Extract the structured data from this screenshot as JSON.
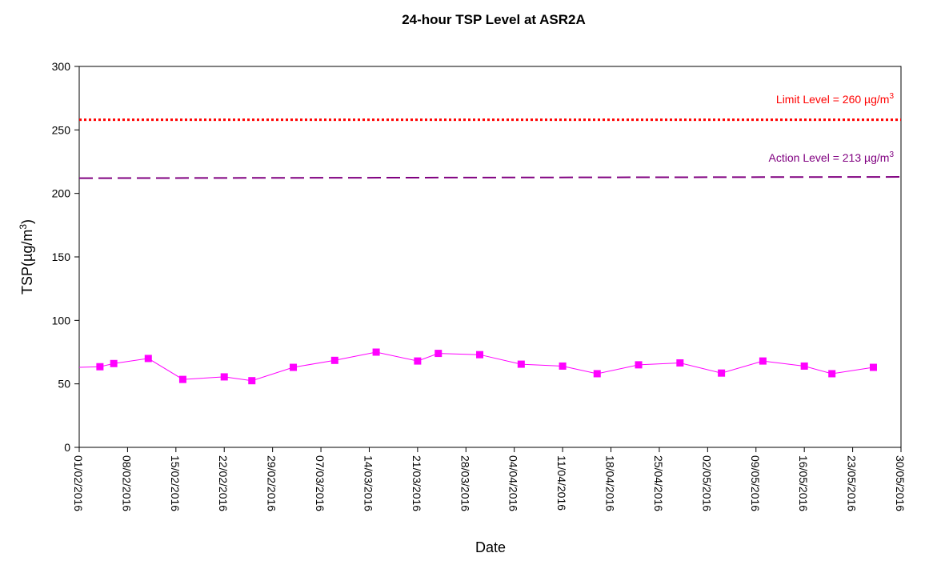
{
  "chart_data": {
    "type": "line",
    "title": "24-hour TSP Level at ASR2A",
    "xlabel": "Date",
    "ylabel": "TSP(µg/m",
    "ylabel_sup": "3",
    "ylim": [
      0,
      300
    ],
    "y_ticks": [
      0,
      50,
      100,
      150,
      200,
      250,
      300
    ],
    "x_range": [
      "2016-02-01",
      "2016-05-30"
    ],
    "x_tick_labels": [
      "01/02/2016",
      "08/02/2016",
      "15/02/2016",
      "22/02/2016",
      "29/02/2016",
      "07/03/2016",
      "14/03/2016",
      "21/03/2016",
      "28/03/2016",
      "04/04/2016",
      "11/04/2016",
      "18/04/2016",
      "25/04/2016",
      "02/05/2016",
      "09/05/2016",
      "16/05/2016",
      "23/05/2016",
      "30/05/2016"
    ],
    "x_tick_dates": [
      "2016-02-01",
      "2016-02-08",
      "2016-02-15",
      "2016-02-22",
      "2016-02-29",
      "2016-03-07",
      "2016-03-14",
      "2016-03-21",
      "2016-03-28",
      "2016-04-04",
      "2016-04-11",
      "2016-04-18",
      "2016-04-25",
      "2016-05-02",
      "2016-05-09",
      "2016-05-16",
      "2016-05-23",
      "2016-05-30"
    ],
    "grid": false,
    "series": [
      {
        "color": "#ff00ff",
        "marker": "square",
        "points": [
          {
            "x": "2016-02-01",
            "y": 63,
            "marker": false
          },
          {
            "x": "2016-02-04",
            "y": 63.5
          },
          {
            "x": "2016-02-06",
            "y": 66
          },
          {
            "x": "2016-02-11",
            "y": 70
          },
          {
            "x": "2016-02-16",
            "y": 53.5
          },
          {
            "x": "2016-02-22",
            "y": 55.5
          },
          {
            "x": "2016-02-26",
            "y": 52.5
          },
          {
            "x": "2016-03-03",
            "y": 63
          },
          {
            "x": "2016-03-09",
            "y": 68.5
          },
          {
            "x": "2016-03-15",
            "y": 75
          },
          {
            "x": "2016-03-21",
            "y": 68
          },
          {
            "x": "2016-03-24",
            "y": 74
          },
          {
            "x": "2016-03-30",
            "y": 73
          },
          {
            "x": "2016-04-05",
            "y": 65.5
          },
          {
            "x": "2016-04-11",
            "y": 64
          },
          {
            "x": "2016-04-16",
            "y": 58
          },
          {
            "x": "2016-04-22",
            "y": 65
          },
          {
            "x": "2016-04-28",
            "y": 66.5
          },
          {
            "x": "2016-05-04",
            "y": 58.5
          },
          {
            "x": "2016-05-10",
            "y": 68
          },
          {
            "x": "2016-05-16",
            "y": 64
          },
          {
            "x": "2016-05-20",
            "y": 58
          },
          {
            "x": "2016-05-26",
            "y": 63
          }
        ]
      }
    ],
    "reference_lines": [
      {
        "label": "Limit Level = 260 µg/m",
        "label_sup": "3",
        "y_start": 258,
        "y_end": 258,
        "color": "#ff0000",
        "style": "dotted"
      },
      {
        "label": "Action Level = 213 µg/m",
        "label_sup": "3",
        "y_start": 212,
        "y_end": 213,
        "color": "#800080",
        "style": "dashed"
      }
    ]
  }
}
